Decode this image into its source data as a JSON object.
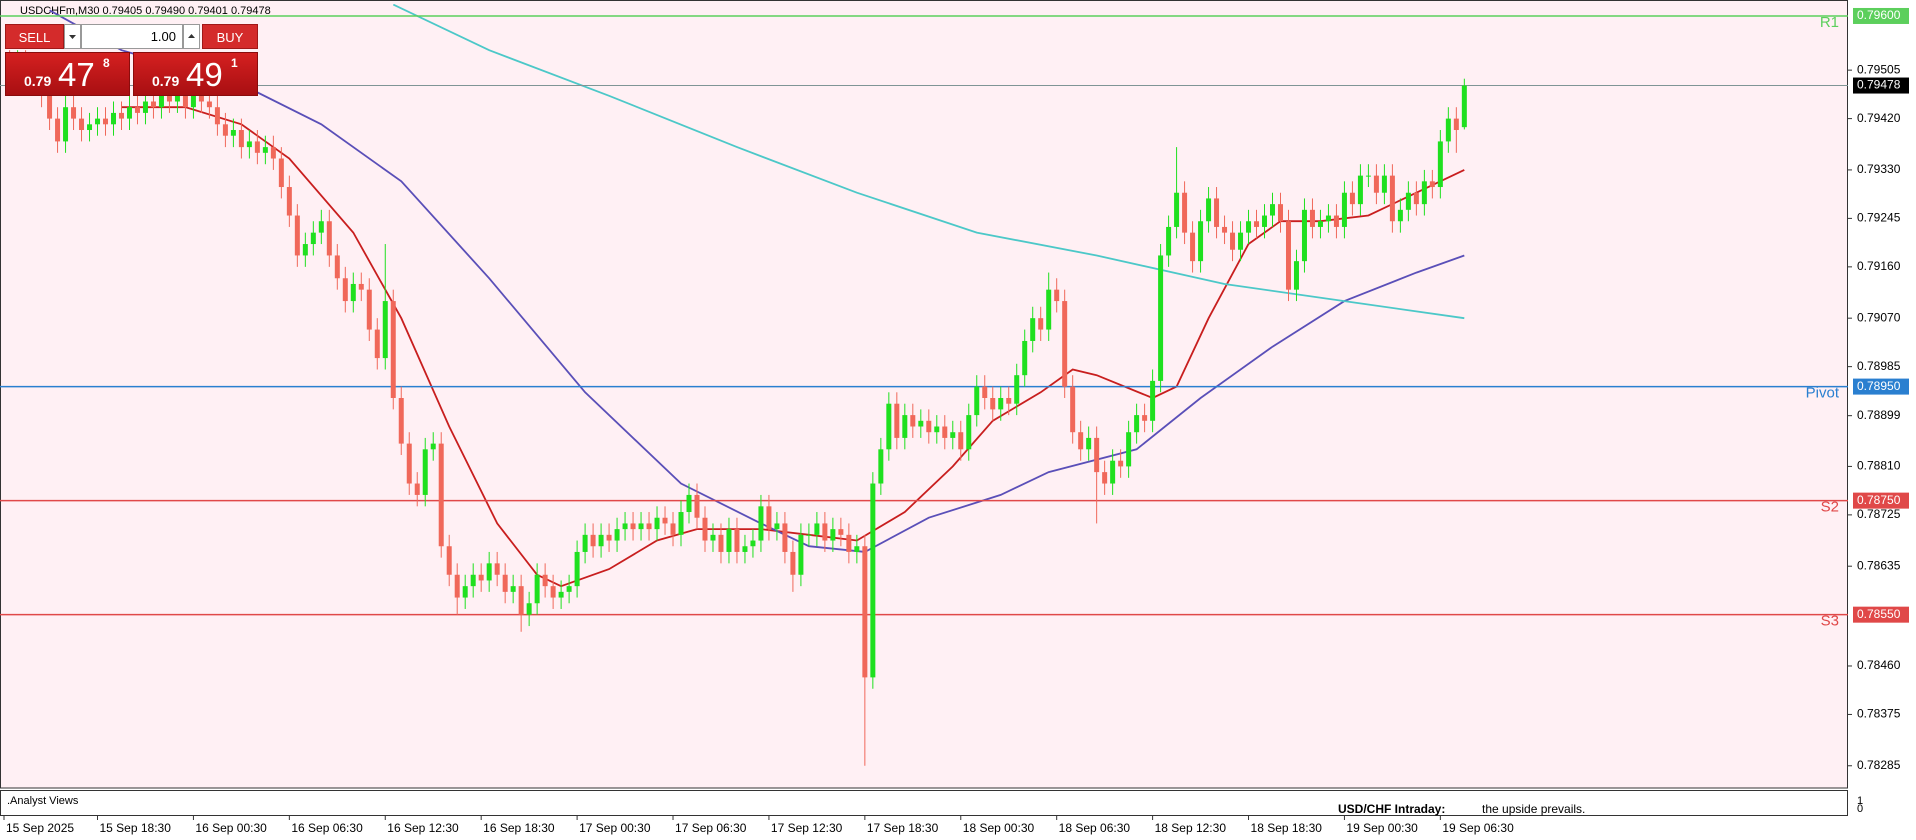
{
  "chart_data": {
    "type": "candlestick",
    "symbol_info": "USDCHFm,M30  0.79405 0.79490 0.79401 0.79478",
    "up_color": "#1fe01f",
    "down_color": "#f0685a",
    "xlim": [
      -1.2,
      230
    ],
    "ylim": [
      0.78246,
      0.79621
    ],
    "xticks": [
      {
        "value": 0,
        "label": "15 Sep 2025"
      },
      {
        "value": 11,
        "label": "15 Sep 18:30"
      },
      {
        "value": 23,
        "label": "16 Sep 00:30"
      },
      {
        "value": 35,
        "label": "16 Sep 06:30"
      },
      {
        "value": 47,
        "label": "16 Sep 12:30"
      },
      {
        "value": 59,
        "label": "16 Sep 18:30"
      },
      {
        "value": 71,
        "label": "17 Sep 00:30"
      },
      {
        "value": 83,
        "label": "17 Sep 06:30"
      },
      {
        "value": 95,
        "label": "17 Sep 12:30"
      },
      {
        "value": 107,
        "label": "17 Sep 18:30"
      },
      {
        "value": 119,
        "label": "18 Sep 00:30"
      },
      {
        "value": 131,
        "label": "18 Sep 06:30"
      },
      {
        "value": 143,
        "label": "18 Sep 12:30"
      },
      {
        "value": 155,
        "label": "18 Sep 18:30"
      },
      {
        "value": 167,
        "label": "19 Sep 00:30"
      },
      {
        "value": 179,
        "label": "19 Sep 06:30"
      }
    ],
    "yticks": [
      0.79505,
      {
        "value": 0.7942,
        "label": "0.79420"
      },
      {
        "value": 0.7933,
        "label": "0.79330"
      },
      0.79245,
      {
        "value": 0.7916,
        "label": "0.79160"
      },
      {
        "value": 0.7907,
        "label": "0.79070"
      },
      0.78985,
      0.78899,
      {
        "value": 0.7881,
        "label": "0.78810"
      },
      0.78725,
      0.78635,
      {
        "value": 0.7846,
        "label": "0.78460"
      },
      0.78375,
      0.78285
    ],
    "levels": [
      {
        "name": "R1",
        "value": 0.796,
        "value_label": "0.79600",
        "color": "#5ccf5c"
      },
      {
        "name": "Pivot",
        "value": 0.7895,
        "value_label": "0.78950",
        "color": "#2a7fd0"
      },
      {
        "name": "S2",
        "value": 0.7875,
        "value_label": "0.78750",
        "color": "#e04848"
      },
      {
        "name": "S3",
        "value": 0.7855,
        "value_label": "0.78550",
        "color": "#e04848"
      }
    ],
    "last_price": 0.79478,
    "moving_averages": [
      {
        "color": "#c81e1e",
        "x": [
          14,
          22,
          29,
          35,
          43,
          49,
          55,
          61,
          66,
          69,
          75,
          81,
          86,
          94,
          100,
          106,
          112,
          118,
          123,
          129,
          133,
          136,
          143,
          146,
          150,
          155,
          159,
          164,
          170,
          176,
          182
        ],
        "values": [
          0.7944,
          0.7944,
          0.7941,
          0.7935,
          0.7922,
          0.7907,
          0.7888,
          0.7871,
          0.7862,
          0.786,
          0.7863,
          0.7868,
          0.787,
          0.787,
          0.7869,
          0.7868,
          0.7873,
          0.7881,
          0.7889,
          0.7894,
          0.7898,
          0.7897,
          0.7893,
          0.7895,
          0.7907,
          0.792,
          0.7924,
          0.7924,
          0.7925,
          0.7929,
          0.7933
        ]
      },
      {
        "color": "#5a4fb8",
        "x": [
          5,
          14,
          29,
          39,
          49,
          60,
          72,
          84,
          94,
          100,
          107,
          115,
          124,
          130,
          141,
          149,
          158,
          167,
          176,
          182
        ],
        "values": [
          0.7961,
          0.7954,
          0.7948,
          0.7941,
          0.7931,
          0.7914,
          0.7894,
          0.7878,
          0.7871,
          0.7867,
          0.7866,
          0.7872,
          0.7876,
          0.788,
          0.7884,
          0.7893,
          0.7902,
          0.791,
          0.7915,
          0.7918
        ]
      },
      {
        "color": "#4cc8c8",
        "x": [
          48,
          60,
          75,
          91,
          106,
          121,
          136,
          152,
          167,
          182
        ],
        "values": [
          0.7962,
          0.7954,
          0.7946,
          0.7937,
          0.7929,
          0.7922,
          0.7918,
          0.7913,
          0.791,
          0.7907
        ]
      }
    ],
    "ohlc": [
      [
        0.7952,
        0.7954,
        0.7948,
        0.795
      ],
      [
        0.795,
        0.7954,
        0.7948,
        0.7952
      ],
      [
        0.7952,
        0.7954,
        0.7947,
        0.7949
      ],
      [
        0.7949,
        0.7953,
        0.7947,
        0.7951
      ],
      [
        0.7951,
        0.7953,
        0.7944,
        0.7946
      ],
      [
        0.7946,
        0.7948,
        0.794,
        0.7942
      ],
      [
        0.7942,
        0.7944,
        0.7936,
        0.7938
      ],
      [
        0.7938,
        0.7946,
        0.7936,
        0.7944
      ],
      [
        0.7944,
        0.7946,
        0.794,
        0.7942
      ],
      [
        0.7942,
        0.7944,
        0.7938,
        0.794
      ],
      [
        0.794,
        0.7943,
        0.7938,
        0.7941
      ],
      [
        0.7941,
        0.7944,
        0.7939,
        0.7942
      ],
      [
        0.7942,
        0.7944,
        0.7939,
        0.7941
      ],
      [
        0.7941,
        0.7945,
        0.7939,
        0.7943
      ],
      [
        0.7943,
        0.7945,
        0.794,
        0.7942
      ],
      [
        0.7942,
        0.7946,
        0.794,
        0.7944
      ],
      [
        0.7944,
        0.7946,
        0.7941,
        0.7943
      ],
      [
        0.7943,
        0.7947,
        0.7941,
        0.7945
      ],
      [
        0.7945,
        0.7947,
        0.7942,
        0.7944
      ],
      [
        0.7944,
        0.7948,
        0.7942,
        0.7946
      ],
      [
        0.7946,
        0.7948,
        0.7943,
        0.7945
      ],
      [
        0.7945,
        0.7948,
        0.7943,
        0.7946
      ],
      [
        0.7946,
        0.7948,
        0.7942,
        0.7944
      ],
      [
        0.7944,
        0.7948,
        0.7942,
        0.7946
      ],
      [
        0.7946,
        0.7948,
        0.7943,
        0.7945
      ],
      [
        0.7945,
        0.7947,
        0.7942,
        0.7944
      ],
      [
        0.7944,
        0.7946,
        0.7939,
        0.7941
      ],
      [
        0.7941,
        0.7943,
        0.7937,
        0.7939
      ],
      [
        0.7939,
        0.7942,
        0.7937,
        0.794
      ],
      [
        0.794,
        0.7942,
        0.7935,
        0.7937
      ],
      [
        0.7937,
        0.794,
        0.7935,
        0.7938
      ],
      [
        0.7938,
        0.794,
        0.7934,
        0.7936
      ],
      [
        0.7936,
        0.7939,
        0.7934,
        0.7937
      ],
      [
        0.7937,
        0.7939,
        0.7933,
        0.7935
      ],
      [
        0.7935,
        0.7937,
        0.7928,
        0.793
      ],
      [
        0.793,
        0.7932,
        0.7923,
        0.7925
      ],
      [
        0.7925,
        0.7927,
        0.7916,
        0.7918
      ],
      [
        0.7918,
        0.7922,
        0.7916,
        0.792
      ],
      [
        0.792,
        0.7924,
        0.7918,
        0.7922
      ],
      [
        0.7922,
        0.7926,
        0.792,
        0.7924
      ],
      [
        0.7924,
        0.7926,
        0.7916,
        0.7918
      ],
      [
        0.7918,
        0.792,
        0.7912,
        0.7914
      ],
      [
        0.7914,
        0.7916,
        0.7908,
        0.791
      ],
      [
        0.791,
        0.7915,
        0.7908,
        0.7913
      ],
      [
        0.7913,
        0.7915,
        0.791,
        0.7912
      ],
      [
        0.7912,
        0.7914,
        0.7903,
        0.7905
      ],
      [
        0.7905,
        0.7907,
        0.7898,
        0.79
      ],
      [
        0.79,
        0.792,
        0.7898,
        0.791
      ],
      [
        0.791,
        0.7912,
        0.7891,
        0.7893
      ],
      [
        0.7893,
        0.7895,
        0.7883,
        0.7885
      ],
      [
        0.7885,
        0.7887,
        0.7876,
        0.7878
      ],
      [
        0.7878,
        0.788,
        0.7874,
        0.7876
      ],
      [
        0.7876,
        0.7886,
        0.7874,
        0.7884
      ],
      [
        0.7884,
        0.7887,
        0.7882,
        0.7885
      ],
      [
        0.7885,
        0.7887,
        0.7865,
        0.7867
      ],
      [
        0.7867,
        0.7869,
        0.786,
        0.7862
      ],
      [
        0.7862,
        0.7864,
        0.7855,
        0.7858
      ],
      [
        0.7858,
        0.7862,
        0.7856,
        0.786
      ],
      [
        0.786,
        0.7864,
        0.7858,
        0.7862
      ],
      [
        0.7862,
        0.7864,
        0.7859,
        0.7861
      ],
      [
        0.7861,
        0.7866,
        0.7859,
        0.7864
      ],
      [
        0.7864,
        0.7866,
        0.786,
        0.7862
      ],
      [
        0.7862,
        0.7864,
        0.7857,
        0.7859
      ],
      [
        0.7859,
        0.7862,
        0.7857,
        0.786
      ],
      [
        0.786,
        0.7862,
        0.7852,
        0.7855
      ],
      [
        0.7855,
        0.7859,
        0.7853,
        0.7857
      ],
      [
        0.7857,
        0.7864,
        0.7855,
        0.7862
      ],
      [
        0.7862,
        0.7864,
        0.7858,
        0.786
      ],
      [
        0.786,
        0.7862,
        0.7856,
        0.7858
      ],
      [
        0.7858,
        0.7861,
        0.7856,
        0.7859
      ],
      [
        0.7859,
        0.7862,
        0.7857,
        0.786
      ],
      [
        0.786,
        0.7868,
        0.7858,
        0.7866
      ],
      [
        0.7866,
        0.7871,
        0.7864,
        0.7869
      ],
      [
        0.7869,
        0.7871,
        0.7865,
        0.7867
      ],
      [
        0.7867,
        0.7871,
        0.7865,
        0.7869
      ],
      [
        0.7869,
        0.7871,
        0.7866,
        0.7868
      ],
      [
        0.7868,
        0.7872,
        0.7866,
        0.787
      ],
      [
        0.787,
        0.7873,
        0.7868,
        0.7871
      ],
      [
        0.7871,
        0.7873,
        0.7868,
        0.787
      ],
      [
        0.787,
        0.7873,
        0.7868,
        0.7871
      ],
      [
        0.7871,
        0.7873,
        0.7868,
        0.787
      ],
      [
        0.787,
        0.7874,
        0.7868,
        0.7872
      ],
      [
        0.7872,
        0.7874,
        0.7869,
        0.7871
      ],
      [
        0.7871,
        0.7873,
        0.7867,
        0.7869
      ],
      [
        0.7869,
        0.7875,
        0.7867,
        0.7873
      ],
      [
        0.7873,
        0.7878,
        0.7871,
        0.7876
      ],
      [
        0.7876,
        0.7878,
        0.787,
        0.7872
      ],
      [
        0.7872,
        0.7874,
        0.7866,
        0.7868
      ],
      [
        0.7868,
        0.7871,
        0.7866,
        0.7869
      ],
      [
        0.7869,
        0.7871,
        0.7864,
        0.7866
      ],
      [
        0.7866,
        0.7872,
        0.7864,
        0.787
      ],
      [
        0.787,
        0.7872,
        0.7864,
        0.7866
      ],
      [
        0.7866,
        0.7869,
        0.7864,
        0.7867
      ],
      [
        0.7867,
        0.787,
        0.7865,
        0.7868
      ],
      [
        0.7868,
        0.7876,
        0.7866,
        0.7874
      ],
      [
        0.7874,
        0.7876,
        0.7868,
        0.787
      ],
      [
        0.787,
        0.7873,
        0.7868,
        0.7871
      ],
      [
        0.7871,
        0.7873,
        0.7864,
        0.7866
      ],
      [
        0.7866,
        0.7868,
        0.7859,
        0.7862
      ],
      [
        0.7862,
        0.7871,
        0.786,
        0.7869
      ],
      [
        0.7869,
        0.7871,
        0.7867,
        0.7869
      ],
      [
        0.7869,
        0.7873,
        0.7867,
        0.7871
      ],
      [
        0.7871,
        0.7873,
        0.7866,
        0.7868
      ],
      [
        0.7868,
        0.7872,
        0.7866,
        0.787
      ],
      [
        0.787,
        0.7872,
        0.7867,
        0.7869
      ],
      [
        0.7869,
        0.7871,
        0.7864,
        0.7866
      ],
      [
        0.7866,
        0.7869,
        0.7864,
        0.7867
      ],
      [
        0.7867,
        0.7869,
        0.78285,
        0.7844
      ],
      [
        0.7844,
        0.788,
        0.7842,
        0.7878
      ],
      [
        0.7878,
        0.7886,
        0.7876,
        0.7884
      ],
      [
        0.7884,
        0.7894,
        0.7882,
        0.7892
      ],
      [
        0.7892,
        0.7894,
        0.7884,
        0.7886
      ],
      [
        0.7886,
        0.7892,
        0.7884,
        0.789
      ],
      [
        0.789,
        0.7892,
        0.7886,
        0.7888
      ],
      [
        0.7888,
        0.7891,
        0.7886,
        0.7889
      ],
      [
        0.7889,
        0.7891,
        0.7885,
        0.7887
      ],
      [
        0.7887,
        0.789,
        0.7885,
        0.7888
      ],
      [
        0.7888,
        0.789,
        0.7884,
        0.7886
      ],
      [
        0.7886,
        0.7889,
        0.7884,
        0.7887
      ],
      [
        0.7887,
        0.7889,
        0.7882,
        0.7884
      ],
      [
        0.7884,
        0.7892,
        0.7882,
        0.789
      ],
      [
        0.789,
        0.7897,
        0.7888,
        0.7895
      ],
      [
        0.7895,
        0.7897,
        0.7891,
        0.7893
      ],
      [
        0.7893,
        0.7895,
        0.7889,
        0.7891
      ],
      [
        0.7891,
        0.7895,
        0.7889,
        0.7893
      ],
      [
        0.7893,
        0.7895,
        0.789,
        0.7892
      ],
      [
        0.7892,
        0.7899,
        0.789,
        0.7897
      ],
      [
        0.7897,
        0.7905,
        0.7895,
        0.7903
      ],
      [
        0.7903,
        0.7909,
        0.7901,
        0.7907
      ],
      [
        0.7907,
        0.7909,
        0.7903,
        0.7905
      ],
      [
        0.7905,
        0.7915,
        0.7903,
        0.7912
      ],
      [
        0.7912,
        0.7914,
        0.7908,
        0.791
      ],
      [
        0.791,
        0.7912,
        0.7893,
        0.7895
      ],
      [
        0.7895,
        0.7897,
        0.7885,
        0.7887
      ],
      [
        0.7887,
        0.7889,
        0.7882,
        0.7884
      ],
      [
        0.7884,
        0.7888,
        0.7882,
        0.7886
      ],
      [
        0.7886,
        0.7888,
        0.7871,
        0.788
      ],
      [
        0.788,
        0.7882,
        0.7876,
        0.7878
      ],
      [
        0.7878,
        0.7884,
        0.7876,
        0.7882
      ],
      [
        0.7882,
        0.7884,
        0.7879,
        0.7881
      ],
      [
        0.7881,
        0.7889,
        0.7879,
        0.7887
      ],
      [
        0.7887,
        0.7892,
        0.7885,
        0.789
      ],
      [
        0.789,
        0.7892,
        0.7887,
        0.7889
      ],
      [
        0.7889,
        0.7898,
        0.7887,
        0.7896
      ],
      [
        0.7896,
        0.792,
        0.7894,
        0.7918
      ],
      [
        0.7918,
        0.7925,
        0.7916,
        0.7923
      ],
      [
        0.7923,
        0.7937,
        0.7921,
        0.7929
      ],
      [
        0.7929,
        0.7931,
        0.792,
        0.7922
      ],
      [
        0.7922,
        0.7924,
        0.7915,
        0.7917
      ],
      [
        0.7917,
        0.7926,
        0.7915,
        0.7924
      ],
      [
        0.7924,
        0.793,
        0.7922,
        0.7928
      ],
      [
        0.7928,
        0.793,
        0.7921,
        0.7923
      ],
      [
        0.7923,
        0.7925,
        0.792,
        0.7922
      ],
      [
        0.7922,
        0.7924,
        0.7917,
        0.7919
      ],
      [
        0.7919,
        0.7924,
        0.7917,
        0.7922
      ],
      [
        0.7922,
        0.7926,
        0.792,
        0.7924
      ],
      [
        0.7924,
        0.7926,
        0.7921,
        0.7923
      ],
      [
        0.7923,
        0.7927,
        0.7921,
        0.7925
      ],
      [
        0.7925,
        0.7929,
        0.7923,
        0.7927
      ],
      [
        0.7927,
        0.7929,
        0.7922,
        0.7924
      ],
      [
        0.7924,
        0.7926,
        0.791,
        0.7912
      ],
      [
        0.7912,
        0.7919,
        0.791,
        0.7917
      ],
      [
        0.7917,
        0.7928,
        0.7915,
        0.7926
      ],
      [
        0.7926,
        0.7928,
        0.7921,
        0.7923
      ],
      [
        0.7923,
        0.7926,
        0.7921,
        0.7924
      ],
      [
        0.7924,
        0.7927,
        0.7922,
        0.7925
      ],
      [
        0.7925,
        0.7927,
        0.7921,
        0.7923
      ],
      [
        0.7923,
        0.7931,
        0.7921,
        0.7929
      ],
      [
        0.7929,
        0.7931,
        0.7925,
        0.7927
      ],
      [
        0.7927,
        0.7934,
        0.7925,
        0.7932
      ],
      [
        0.7932,
        0.7934,
        0.793,
        0.7932
      ],
      [
        0.7932,
        0.7934,
        0.7927,
        0.7929
      ],
      [
        0.7929,
        0.7934,
        0.7927,
        0.7932
      ],
      [
        0.7932,
        0.7934,
        0.7922,
        0.7924
      ],
      [
        0.7924,
        0.7928,
        0.7922,
        0.7926
      ],
      [
        0.7926,
        0.7931,
        0.7924,
        0.7929
      ],
      [
        0.7929,
        0.7931,
        0.7925,
        0.7927
      ],
      [
        0.7927,
        0.7933,
        0.7925,
        0.7931
      ],
      [
        0.7931,
        0.7933,
        0.7928,
        0.793
      ],
      [
        0.793,
        0.794,
        0.7928,
        0.7938
      ],
      [
        0.7938,
        0.7944,
        0.7936,
        0.7942
      ],
      [
        0.7942,
        0.7944,
        0.7936,
        0.794
      ],
      [
        0.79405,
        0.7949,
        0.79401,
        0.79478
      ]
    ]
  },
  "trade_panel": {
    "sell": "SELL",
    "buy": "BUY",
    "volume": "1.00",
    "sell_price": {
      "prefix": "0.79",
      "big": "47",
      "small": "8"
    },
    "buy_price": {
      "prefix": "0.79",
      "big": "49",
      "small": "1"
    }
  },
  "indicator_window": {
    "title": ".Analyst Views",
    "headline": "USD/CHF Intraday:",
    "text": "the upside prevails.",
    "ylim": [
      0,
      1
    ],
    "yticks": [
      0,
      1
    ]
  }
}
